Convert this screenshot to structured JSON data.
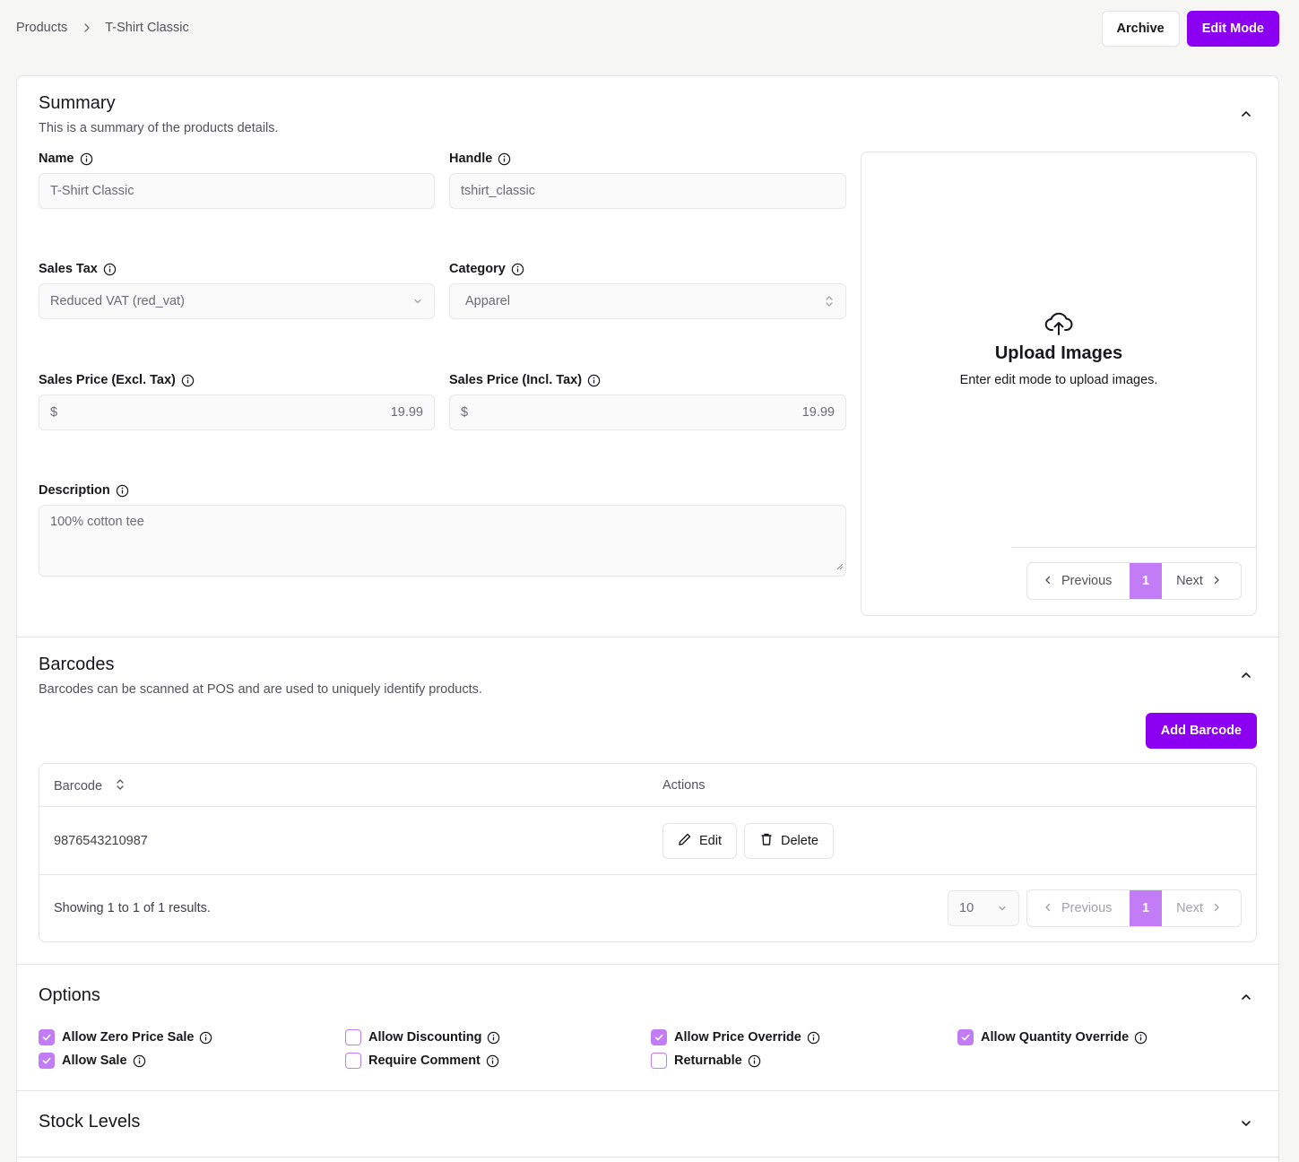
{
  "breadcrumb": {
    "root": "Products",
    "current": "T-Shirt Classic"
  },
  "top_actions": {
    "archive": "Archive",
    "edit_mode": "Edit Mode"
  },
  "colors": {
    "accent": "#8b00f0",
    "accent_light": "#c27cf5"
  },
  "summary": {
    "title": "Summary",
    "description": "This is a summary of the products details.",
    "name": {
      "label": "Name",
      "value": "T-Shirt Classic"
    },
    "handle": {
      "label": "Handle",
      "value": "tshirt_classic"
    },
    "sales_tax": {
      "label": "Sales Tax",
      "value": "Reduced VAT (red_vat)"
    },
    "category": {
      "label": "Category",
      "value": "Apparel"
    },
    "price_excl": {
      "label": "Sales Price (Excl. Tax)",
      "currency": "$",
      "value": "19.99"
    },
    "price_incl": {
      "label": "Sales Price (Incl. Tax)",
      "currency": "$",
      "value": "19.99"
    },
    "description_field": {
      "label": "Description",
      "value": "100% cotton tee"
    },
    "upload": {
      "title": "Upload Images",
      "hint": "Enter edit mode to upload images.",
      "pager": {
        "previous": "Previous",
        "page": "1",
        "next": "Next"
      }
    }
  },
  "barcodes": {
    "title": "Barcodes",
    "description": "Barcodes can be scanned at POS and are used to uniquely identify products.",
    "add_button": "Add Barcode",
    "columns": [
      "Barcode",
      "Actions"
    ],
    "rows": [
      {
        "barcode": "9876543210987",
        "edit": "Edit",
        "delete": "Delete"
      }
    ],
    "footer": {
      "showing": "Showing 1 to 1 of 1 results.",
      "page_size": "10",
      "previous": "Previous",
      "page": "1",
      "next": "Next"
    }
  },
  "options": {
    "title": "Options",
    "items": [
      {
        "label": "Allow Zero Price Sale",
        "checked": true
      },
      {
        "label": "Allow Sale",
        "checked": true
      },
      {
        "label": "Allow Discounting",
        "checked": false
      },
      {
        "label": "Require Comment",
        "checked": false
      },
      {
        "label": "Allow Price Override",
        "checked": true
      },
      {
        "label": "Returnable",
        "checked": false
      },
      {
        "label": "Allow Quantity Override",
        "checked": true
      }
    ]
  },
  "stock_levels": {
    "title": "Stock Levels"
  }
}
